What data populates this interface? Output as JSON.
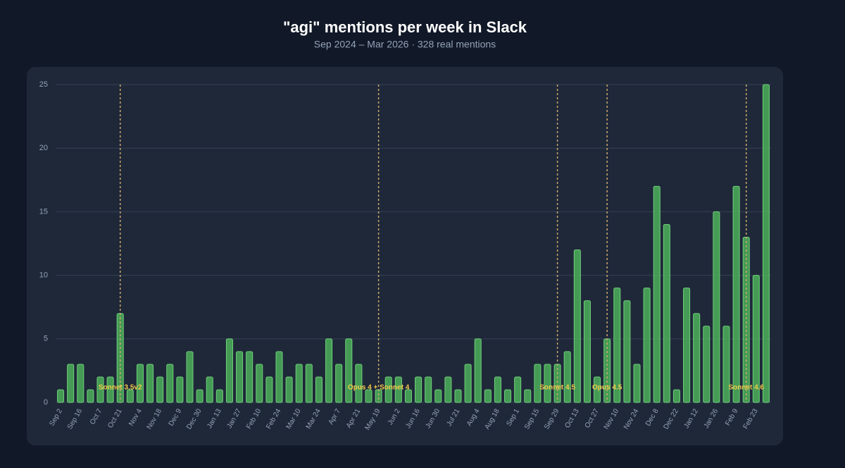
{
  "chart_data": {
    "type": "bar",
    "title": "\"agi\" mentions per week in Slack",
    "subtitle": "Sep 2024 – Mar 2026 · 328 real mentions",
    "categories": [
      "Sep 2",
      null,
      "Sep 16",
      null,
      "Oct 7",
      null,
      "Oct 21",
      null,
      "Nov 4",
      null,
      "Nov 18",
      null,
      "Dec 9",
      null,
      "Dec 30",
      null,
      "Jan 13",
      null,
      "Jan 27",
      null,
      "Feb 10",
      null,
      "Feb 24",
      null,
      "Mar 10",
      null,
      "Mar 24",
      null,
      "Apr 7",
      null,
      "Apr 21",
      null,
      "May 19",
      null,
      "Jun 2",
      null,
      "Jun 16",
      null,
      "Jun 30",
      null,
      "Jul 21",
      null,
      "Aug 4",
      null,
      "Aug 18",
      null,
      "Sep 1",
      null,
      "Sep 15",
      null,
      "Sep 29",
      null,
      "Oct 13",
      null,
      "Oct 27",
      null,
      "Nov 10",
      null,
      "Nov 24",
      null,
      "Dec 8",
      null,
      "Dec 22",
      null,
      "Jan 12",
      null,
      "Jan 26",
      null,
      "Feb 9",
      null,
      "Feb 23",
      null
    ],
    "values": [
      1,
      3,
      3,
      1,
      2,
      2,
      7,
      1,
      3,
      3,
      2,
      3,
      2,
      4,
      1,
      2,
      1,
      5,
      4,
      4,
      3,
      2,
      4,
      2,
      3,
      3,
      2,
      5,
      3,
      5,
      3,
      1,
      1,
      2,
      2,
      1,
      2,
      2,
      1,
      2,
      1,
      3,
      5,
      1,
      2,
      1,
      2,
      1,
      3,
      3,
      3,
      4,
      12,
      8,
      2,
      5,
      9,
      8,
      3,
      9,
      17,
      14,
      1,
      9,
      7,
      6,
      15,
      6,
      17,
      13,
      10,
      25
    ],
    "color": "#4caf5a",
    "ylim": [
      0,
      25
    ],
    "yticks": [
      0,
      5,
      10,
      15,
      20,
      25
    ],
    "grid": true,
    "annotations": [
      {
        "text": "Sonnet 3.5v2",
        "category_index": 6
      },
      {
        "text": "Opus 4 + Sonnet 4",
        "category_index": 32
      },
      {
        "text": "Sonnet 4.5",
        "category_index": 50
      },
      {
        "text": "Opus 4.5",
        "category_index": 55
      },
      {
        "text": "Sonnet 4.6",
        "category_index": 69
      }
    ]
  }
}
